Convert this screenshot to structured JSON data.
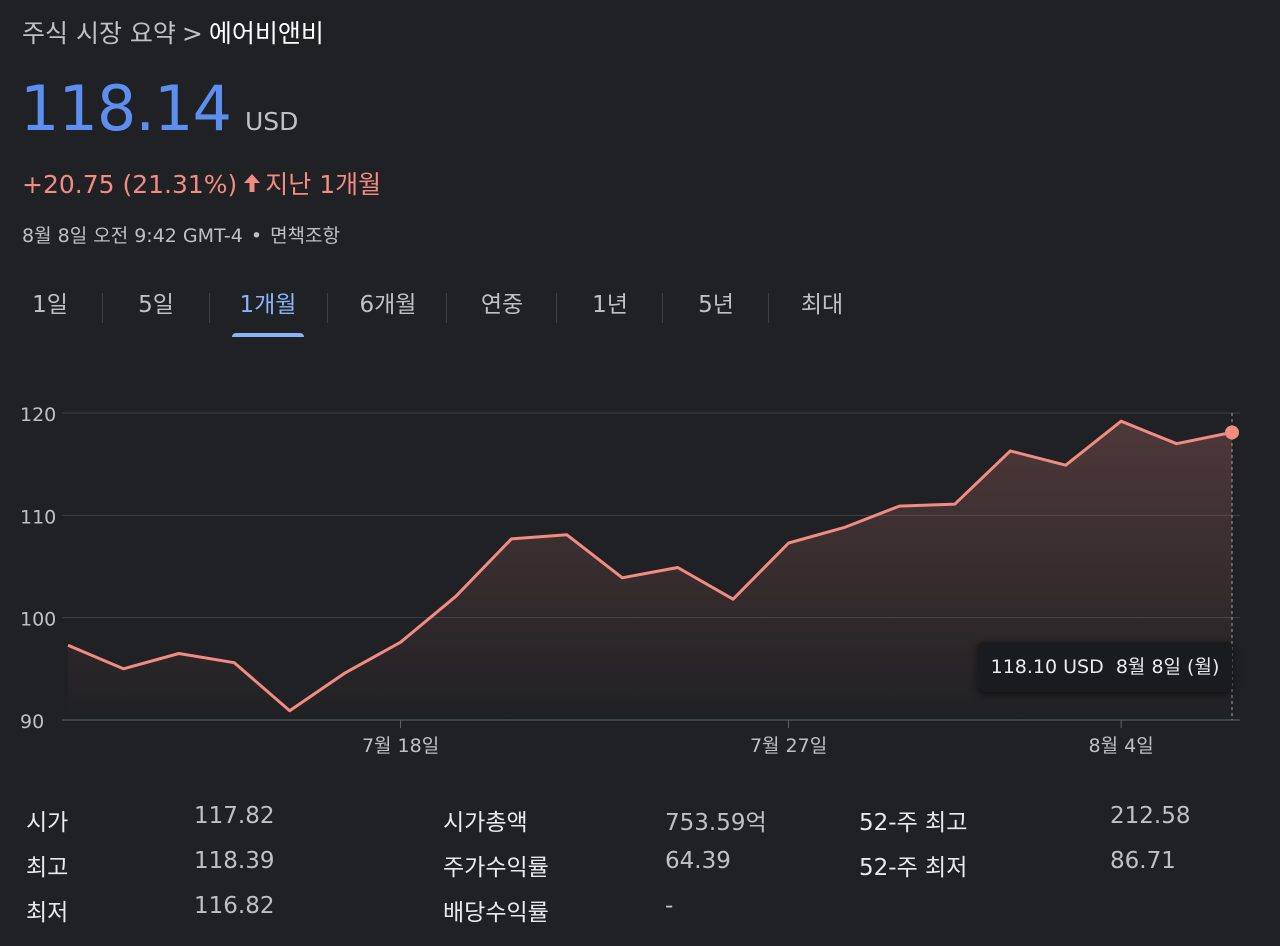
{
  "breadcrumb": {
    "parent": "주식 시장 요약",
    "separator": ">",
    "current": "에어비앤비"
  },
  "quote": {
    "price": "118.14",
    "currency": "USD",
    "change": "+20.75 (21.31%)",
    "change_arrow_icon": "arrow-up-icon",
    "change_period": "지난 1개월",
    "timestamp": "8월 8일 오전 9:42 GMT-4",
    "disclaimer": "면책조항"
  },
  "colors": {
    "accent_price": "#5c8ff0",
    "change_up": "#f28b82",
    "active_tab": "#8ab4f8",
    "background": "#202124"
  },
  "tabs": [
    {
      "label": "1일"
    },
    {
      "label": "5일"
    },
    {
      "label": "1개월",
      "active": true
    },
    {
      "label": "6개월"
    },
    {
      "label": "연중"
    },
    {
      "label": "1년"
    },
    {
      "label": "5년"
    },
    {
      "label": "최대"
    }
  ],
  "chart_data": {
    "type": "area",
    "y_ticks": [
      "120",
      "110",
      "100",
      "90"
    ],
    "ylim": [
      90,
      120
    ],
    "x_ticks": [
      "7월 18일",
      "7월 27일",
      "8월 4일"
    ],
    "x": [
      "7월 8일",
      "7월 11일",
      "7월 12일",
      "7월 13일",
      "7월 14일",
      "7월 15일",
      "7월 18일",
      "7월 19일",
      "7월 20일",
      "7월 21일",
      "7월 22일",
      "7월 25일",
      "7월 26일",
      "7월 27일",
      "7월 28일",
      "7월 29일",
      "8월 1일",
      "8월 2일",
      "8월 3일",
      "8월 4일",
      "8월 5일",
      "8월 8일"
    ],
    "values": [
      97.3,
      95.0,
      96.5,
      95.6,
      90.9,
      94.6,
      97.6,
      102.1,
      107.7,
      108.1,
      103.9,
      104.9,
      101.8,
      107.3,
      108.8,
      110.9,
      111.1,
      116.3,
      114.9,
      119.2,
      117.0,
      118.1
    ],
    "grid": true,
    "line_color": "#f28b82",
    "tooltip": {
      "value": "118.10 USD",
      "date": "8월 8일 (월)"
    }
  },
  "stats": [
    {
      "label": "시가",
      "value": "117.82"
    },
    {
      "label": "최고",
      "value": "118.39"
    },
    {
      "label": "최저",
      "value": "116.82"
    },
    {
      "label": "시가총액",
      "value": "753.59억"
    },
    {
      "label": "주가수익률",
      "value": "64.39"
    },
    {
      "label": "배당수익률",
      "value": "-"
    },
    {
      "label": "52-주 최고",
      "value": "212.58"
    },
    {
      "label": "52-주 최저",
      "value": "86.71"
    }
  ]
}
